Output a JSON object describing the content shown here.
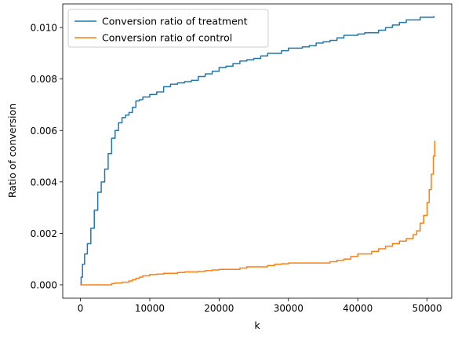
{
  "chart_data": {
    "type": "line",
    "title": "",
    "xlabel": "k",
    "ylabel": "Ratio of conversion",
    "xlim": [
      -2550,
      53550
    ],
    "ylim": [
      -0.00052,
      0.01092
    ],
    "xticks": [
      0,
      10000,
      20000,
      30000,
      40000,
      50000
    ],
    "xtick_labels": [
      "0",
      "10000",
      "20000",
      "30000",
      "40000",
      "50000"
    ],
    "yticks": [
      0.0,
      0.002,
      0.004,
      0.006,
      0.008,
      0.01
    ],
    "ytick_labels": [
      "0.000",
      "0.002",
      "0.004",
      "0.006",
      "0.008",
      "0.010"
    ],
    "grid": false,
    "legend_position": "top-left",
    "series": [
      {
        "name": "Conversion ratio of treatment",
        "color": "#1f77b4",
        "x": [
          0,
          100,
          300,
          600,
          1000,
          1500,
          2000,
          2500,
          3000,
          3500,
          4000,
          4500,
          5000,
          5500,
          6000,
          6500,
          7000,
          7500,
          8000,
          8500,
          9000,
          10000,
          11000,
          12000,
          13000,
          14000,
          15000,
          16000,
          17000,
          18000,
          19000,
          20000,
          21000,
          22000,
          23000,
          24000,
          25000,
          26000,
          27000,
          28000,
          29000,
          30000,
          31000,
          32000,
          33000,
          34000,
          35000,
          36000,
          37000,
          38000,
          39000,
          40000,
          41000,
          42000,
          43000,
          44000,
          45000,
          46000,
          47000,
          48000,
          49000,
          50000,
          51000
        ],
        "y": [
          0.0,
          0.0003,
          0.0008,
          0.0012,
          0.0016,
          0.0022,
          0.0029,
          0.0036,
          0.004,
          0.0045,
          0.0051,
          0.0057,
          0.006,
          0.0063,
          0.0065,
          0.0066,
          0.0067,
          0.0069,
          0.00715,
          0.0072,
          0.0073,
          0.0074,
          0.0075,
          0.0077,
          0.0078,
          0.00785,
          0.0079,
          0.00795,
          0.0081,
          0.0082,
          0.0083,
          0.00845,
          0.0085,
          0.0086,
          0.0087,
          0.00875,
          0.0088,
          0.0089,
          0.009,
          0.009,
          0.0091,
          0.0092,
          0.0092,
          0.00925,
          0.0093,
          0.0094,
          0.00945,
          0.0095,
          0.0096,
          0.0097,
          0.0097,
          0.00975,
          0.0098,
          0.0098,
          0.0099,
          0.01,
          0.0101,
          0.0102,
          0.0103,
          0.0103,
          0.0104,
          0.0104,
          0.01045
        ]
      },
      {
        "name": "Conversion ratio of control",
        "color": "#ff7f0e",
        "x": [
          0,
          1000,
          2000,
          3000,
          4000,
          4500,
          5000,
          6000,
          7000,
          7500,
          8000,
          8500,
          9000,
          10000,
          11000,
          12000,
          13000,
          14000,
          15000,
          16000,
          17000,
          18000,
          19000,
          20000,
          21000,
          22000,
          23000,
          24000,
          25000,
          26000,
          27000,
          28000,
          29000,
          30000,
          31000,
          32000,
          33000,
          34000,
          35000,
          36000,
          37000,
          38000,
          39000,
          40000,
          41000,
          42000,
          43000,
          44000,
          45000,
          46000,
          47000,
          48000,
          48500,
          49000,
          49500,
          50000,
          50300,
          50600,
          50900,
          51100
        ],
        "y": [
          0.0,
          0.0,
          0.0,
          0.0,
          0.0,
          5e-05,
          7e-05,
          0.0001,
          0.00015,
          0.0002,
          0.00025,
          0.0003,
          0.00035,
          0.0004,
          0.00042,
          0.00045,
          0.00045,
          0.00048,
          0.0005,
          0.0005,
          0.00052,
          0.00055,
          0.00058,
          0.0006,
          0.0006,
          0.0006,
          0.00065,
          0.0007,
          0.0007,
          0.0007,
          0.00075,
          0.0008,
          0.00082,
          0.00085,
          0.00085,
          0.00085,
          0.00085,
          0.00085,
          0.00085,
          0.0009,
          0.00095,
          0.001,
          0.0011,
          0.0012,
          0.0012,
          0.0013,
          0.0014,
          0.0015,
          0.0016,
          0.0017,
          0.0018,
          0.00195,
          0.0021,
          0.0024,
          0.0027,
          0.0032,
          0.0037,
          0.0043,
          0.005,
          0.0056
        ]
      }
    ]
  }
}
